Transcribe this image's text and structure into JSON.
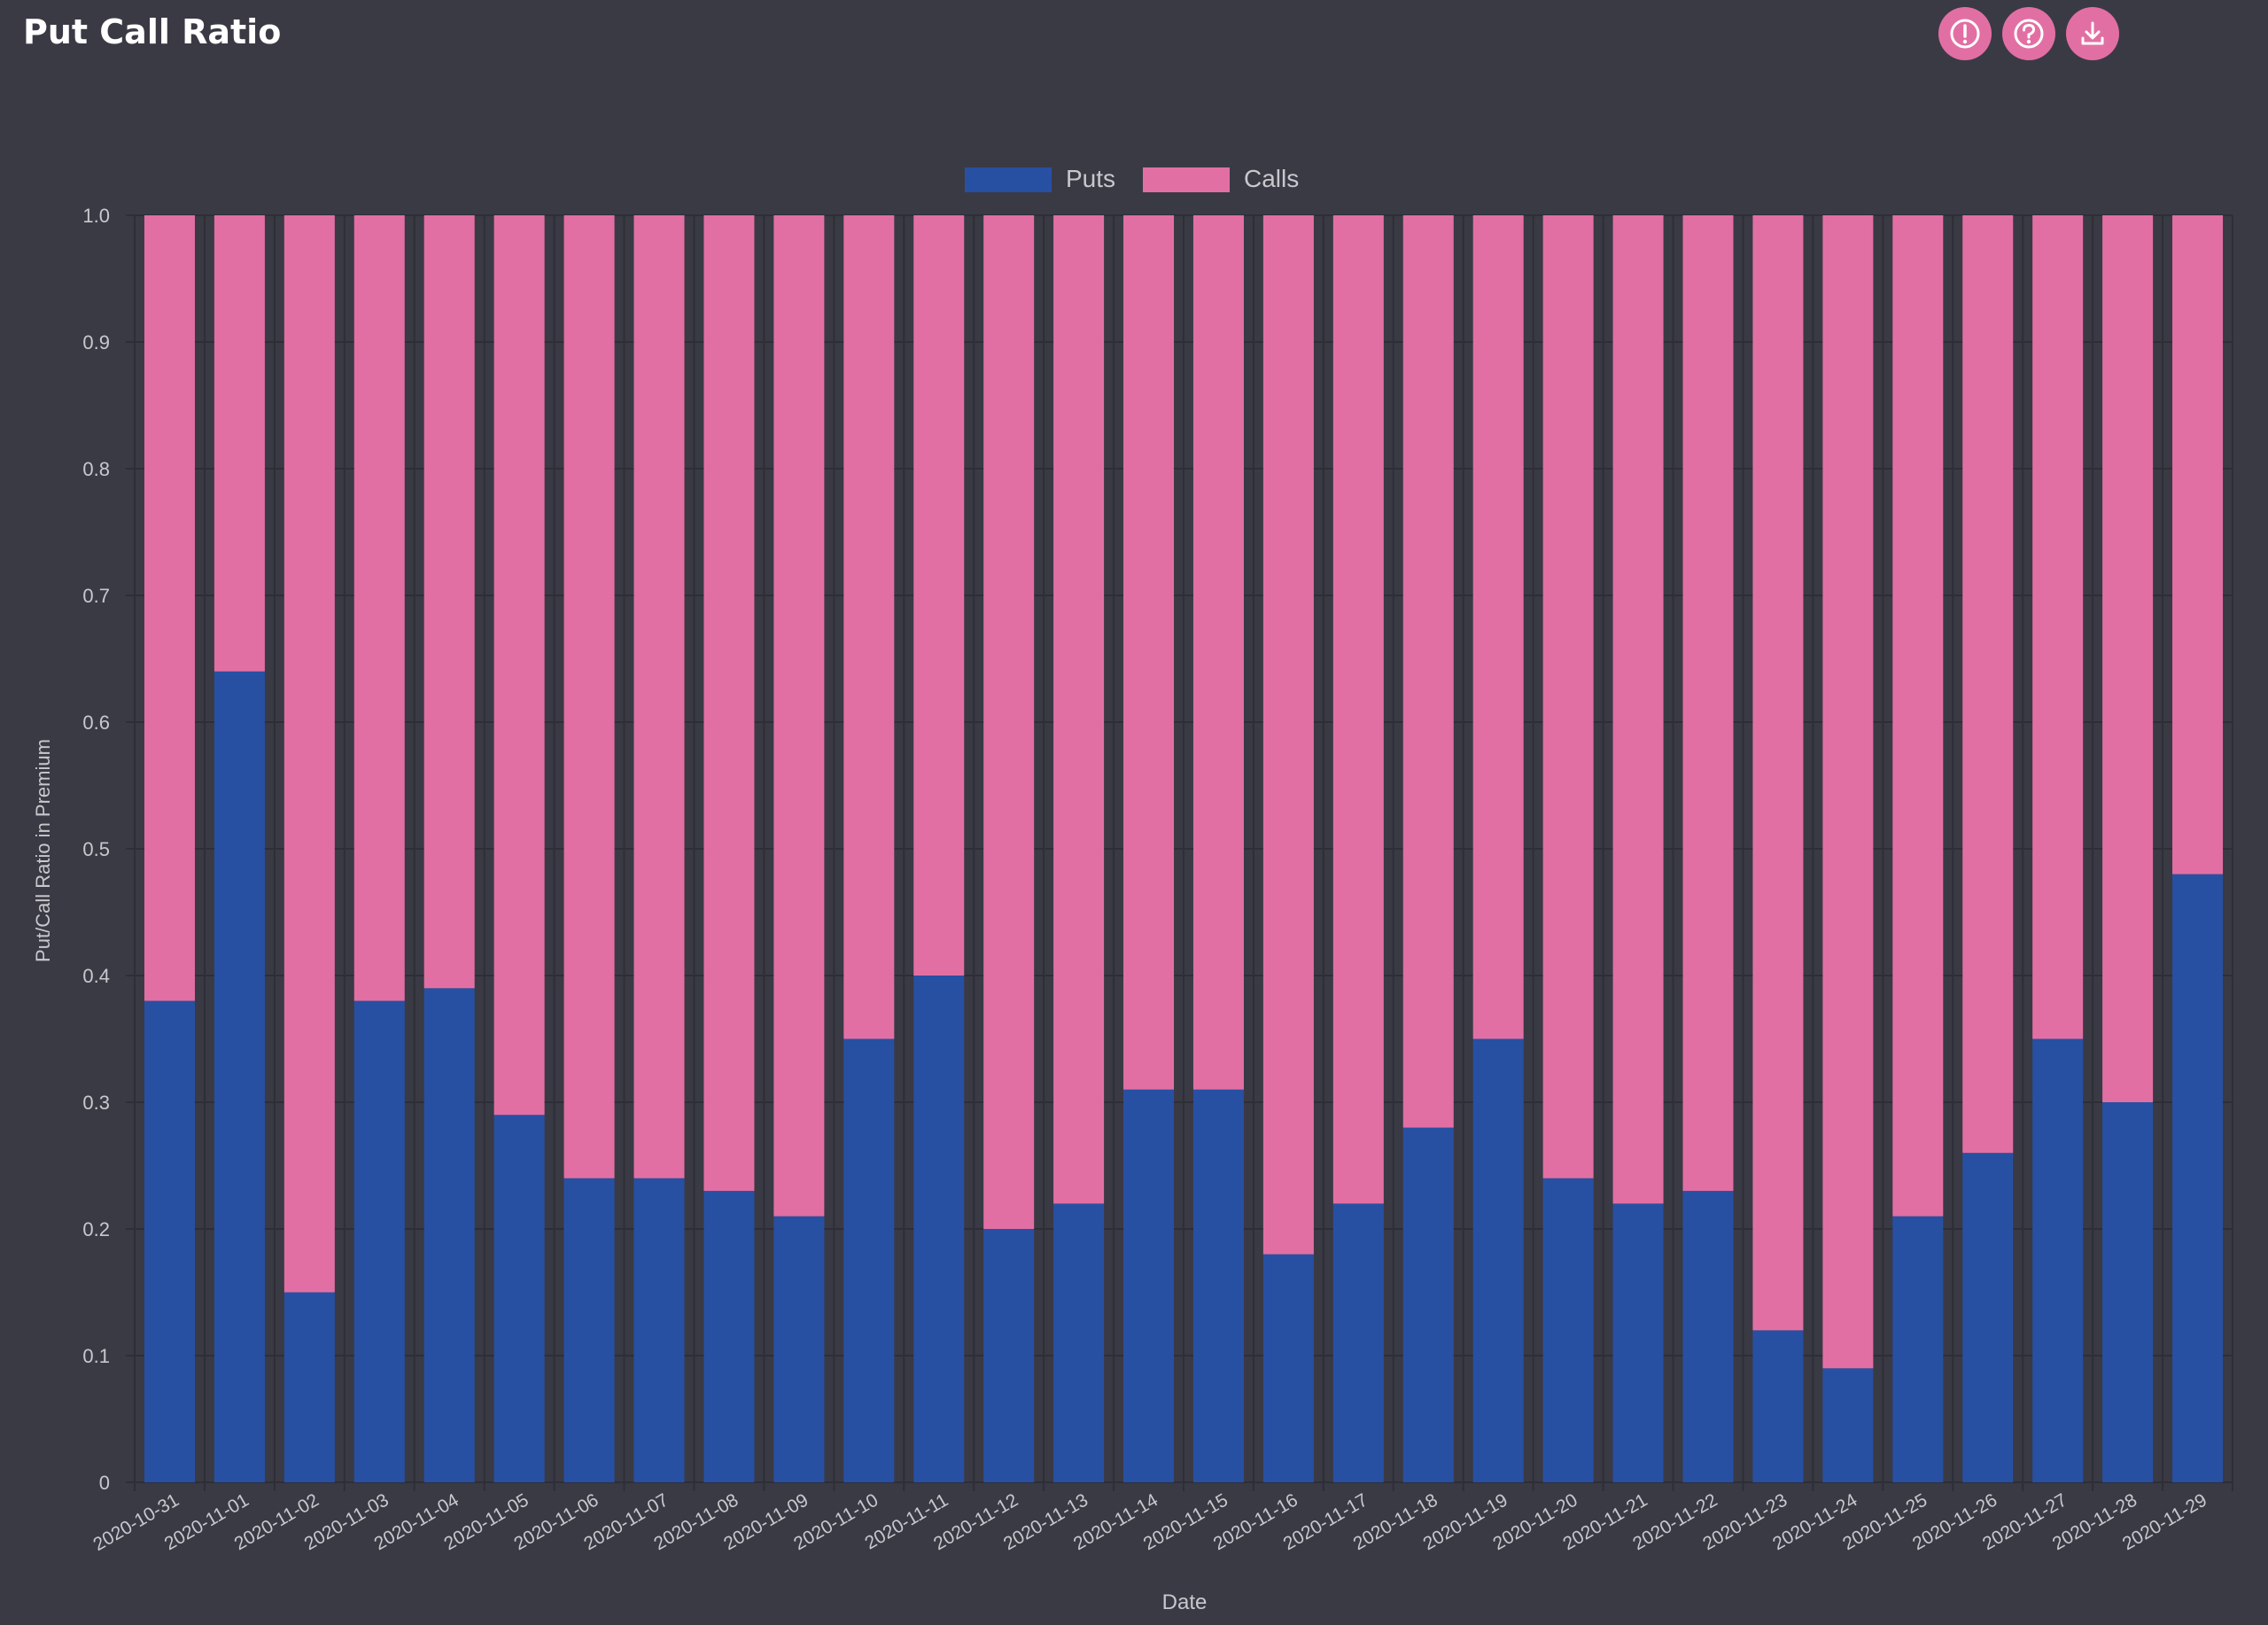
{
  "header": {
    "title": "Put Call Ratio",
    "buttons": [
      {
        "name": "info-button",
        "icon": "info-icon"
      },
      {
        "name": "help-button",
        "icon": "help-icon"
      },
      {
        "name": "download-button",
        "icon": "download-icon"
      }
    ]
  },
  "colors": {
    "background": "#3a3a45",
    "puts": "#2750a3",
    "calls": "#e26fa3",
    "text": "#c8c8cc",
    "grid": "#2e2e37"
  },
  "chart_data": {
    "type": "bar",
    "stacked": true,
    "title": "",
    "xlabel": "Date",
    "ylabel": "Put/Call Ratio in Premium",
    "ylim": [
      0,
      1.0
    ],
    "yticks": [
      "0",
      "0.1",
      "0.2",
      "0.3",
      "0.4",
      "0.5",
      "0.6",
      "0.7",
      "0.8",
      "0.9",
      "1.0"
    ],
    "legend_position": "top-center",
    "categories": [
      "2020-10-31",
      "2020-11-01",
      "2020-11-02",
      "2020-11-03",
      "2020-11-04",
      "2020-11-05",
      "2020-11-06",
      "2020-11-07",
      "2020-11-08",
      "2020-11-09",
      "2020-11-10",
      "2020-11-11",
      "2020-11-12",
      "2020-11-13",
      "2020-11-14",
      "2020-11-15",
      "2020-11-16",
      "2020-11-17",
      "2020-11-18",
      "2020-11-19",
      "2020-11-20",
      "2020-11-21",
      "2020-11-22",
      "2020-11-23",
      "2020-11-24",
      "2020-11-25",
      "2020-11-26",
      "2020-11-27",
      "2020-11-28",
      "2020-11-29"
    ],
    "series": [
      {
        "name": "Puts",
        "values": [
          0.38,
          0.64,
          0.15,
          0.38,
          0.39,
          0.29,
          0.24,
          0.24,
          0.23,
          0.21,
          0.35,
          0.4,
          0.2,
          0.22,
          0.31,
          0.31,
          0.18,
          0.22,
          0.28,
          0.35,
          0.24,
          0.22,
          0.23,
          0.12,
          0.09,
          0.21,
          0.26,
          0.35,
          0.3,
          0.48
        ]
      },
      {
        "name": "Calls",
        "values": [
          0.62,
          0.36,
          0.85,
          0.62,
          0.61,
          0.71,
          0.76,
          0.76,
          0.77,
          0.79,
          0.65,
          0.6,
          0.8,
          0.78,
          0.69,
          0.69,
          0.82,
          0.78,
          0.72,
          0.65,
          0.76,
          0.78,
          0.77,
          0.88,
          0.91,
          0.79,
          0.74,
          0.65,
          0.7,
          0.52
        ]
      }
    ]
  }
}
